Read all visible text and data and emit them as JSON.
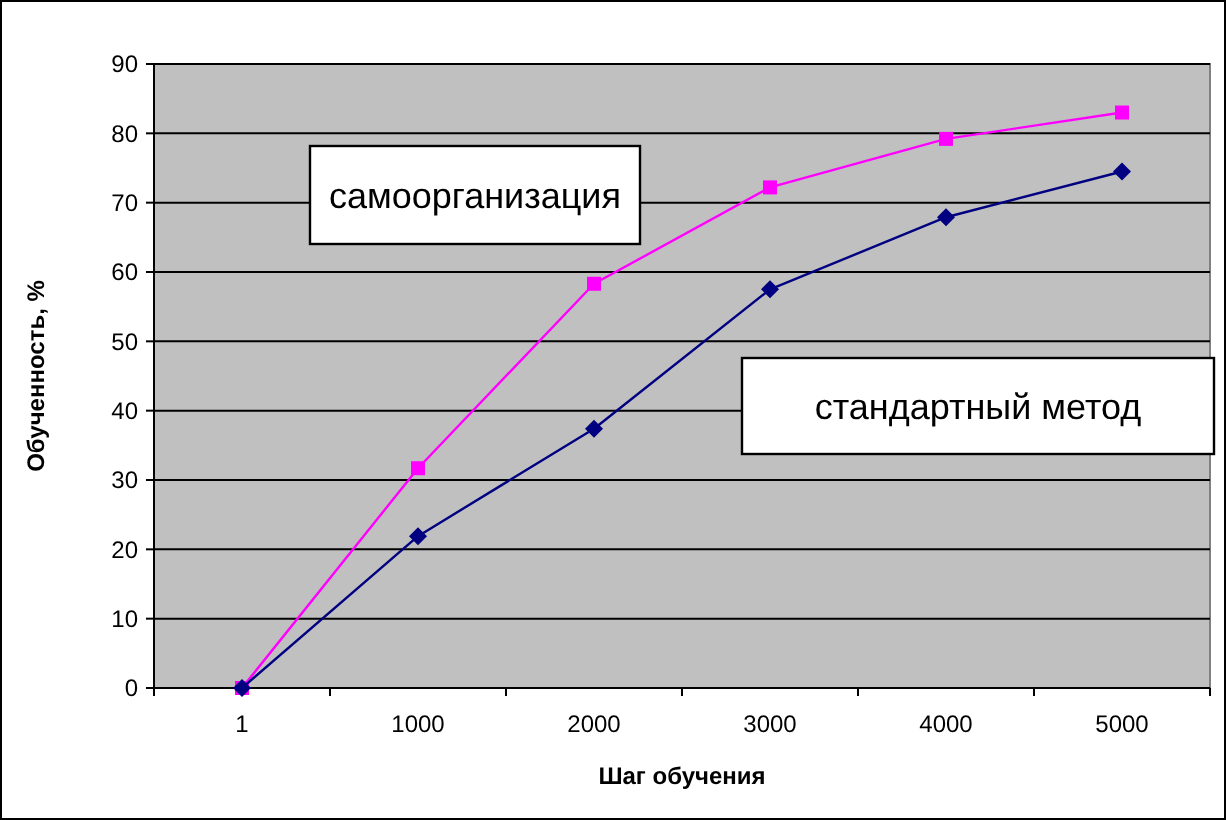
{
  "chart_data": {
    "type": "line",
    "xlabel": "Шаг обучения",
    "ylabel": "Обученность, %",
    "categories": [
      "1",
      "1000",
      "2000",
      "3000",
      "4000",
      "5000"
    ],
    "series": [
      {
        "name": "самоорганизация",
        "color": "#ff00ff",
        "marker": "square",
        "values": [
          0,
          31.7,
          58.3,
          72.2,
          79.2,
          83
        ]
      },
      {
        "name": "стандартный метод",
        "color": "#000080",
        "marker": "diamond",
        "values": [
          0,
          21.9,
          37.4,
          57.5,
          67.9,
          74.5
        ]
      }
    ],
    "ylim": [
      0,
      90
    ],
    "yticks": [
      0,
      10,
      20,
      30,
      40,
      50,
      60,
      70,
      80,
      90
    ],
    "grid": "y"
  }
}
